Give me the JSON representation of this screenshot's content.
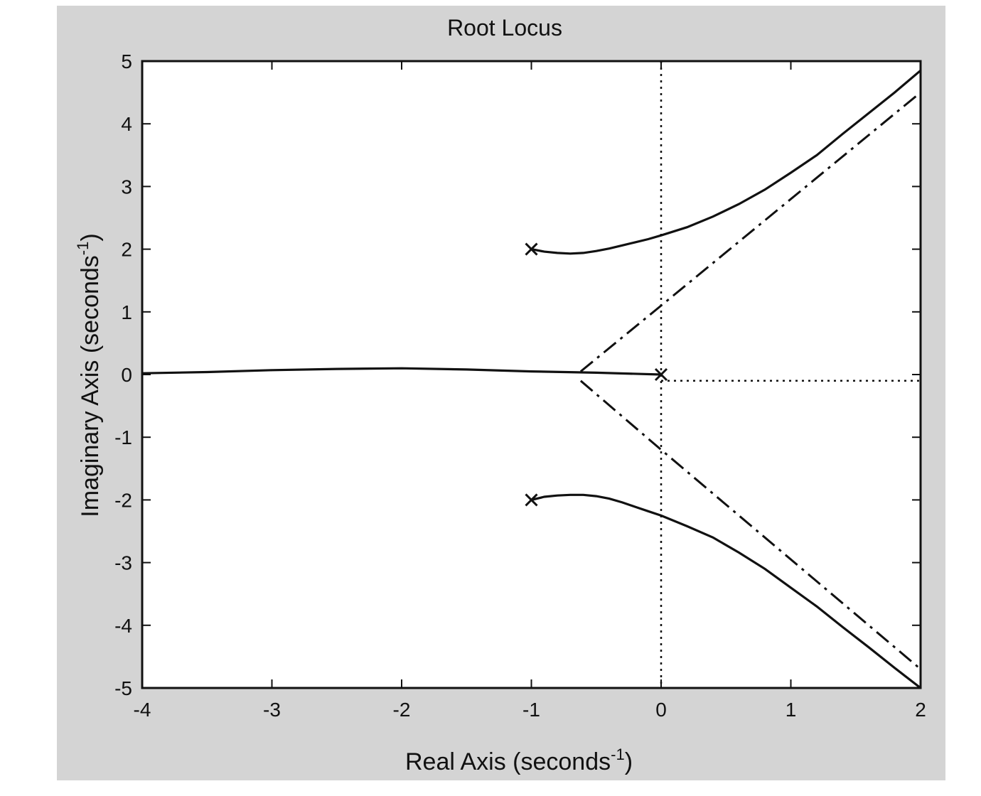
{
  "chart_data": {
    "type": "line",
    "title": "Root Locus",
    "xlabel": "Real Axis (seconds",
    "xlabel_sup": "-1",
    "xlabel_end": ")",
    "ylabel": "Imaginary Axis (seconds",
    "ylabel_sup": "-1",
    "ylabel_end": ")",
    "xlim": [
      -4,
      2
    ],
    "ylim": [
      -5,
      5
    ],
    "xticks": [
      -4,
      -3,
      -2,
      -1,
      0,
      1,
      2
    ],
    "yticks": [
      -5,
      -4,
      -3,
      -2,
      -1,
      0,
      1,
      2,
      3,
      4,
      5
    ],
    "grid": false,
    "poles": [
      {
        "x": -1,
        "y": 2
      },
      {
        "x": -1,
        "y": -2
      },
      {
        "x": 0,
        "y": 0
      }
    ],
    "branches": [
      {
        "style": "solid",
        "points": [
          [
            -1,
            2
          ],
          [
            -0.9,
            1.96
          ],
          [
            -0.8,
            1.94
          ],
          [
            -0.7,
            1.93
          ],
          [
            -0.6,
            1.94
          ],
          [
            -0.5,
            1.97
          ],
          [
            -0.4,
            2.01
          ],
          [
            -0.3,
            2.06
          ],
          [
            -0.2,
            2.11
          ],
          [
            -0.1,
            2.16
          ],
          [
            0,
            2.22
          ],
          [
            0.2,
            2.35
          ],
          [
            0.4,
            2.52
          ],
          [
            0.6,
            2.72
          ],
          [
            0.8,
            2.95
          ],
          [
            1.0,
            3.22
          ],
          [
            1.2,
            3.5
          ],
          [
            1.4,
            3.84
          ],
          [
            1.6,
            4.17
          ],
          [
            1.8,
            4.5
          ],
          [
            2.0,
            4.85
          ]
        ]
      },
      {
        "style": "solid",
        "points": [
          [
            -1,
            -2
          ],
          [
            -0.9,
            -1.95
          ],
          [
            -0.8,
            -1.93
          ],
          [
            -0.7,
            -1.92
          ],
          [
            -0.6,
            -1.92
          ],
          [
            -0.5,
            -1.94
          ],
          [
            -0.4,
            -1.98
          ],
          [
            -0.3,
            -2.04
          ],
          [
            -0.2,
            -2.11
          ],
          [
            -0.1,
            -2.18
          ],
          [
            0,
            -2.25
          ],
          [
            0.2,
            -2.42
          ],
          [
            0.4,
            -2.6
          ],
          [
            0.6,
            -2.84
          ],
          [
            0.8,
            -3.1
          ],
          [
            1.0,
            -3.4
          ],
          [
            1.2,
            -3.7
          ],
          [
            1.4,
            -4.03
          ],
          [
            1.6,
            -4.35
          ],
          [
            1.8,
            -4.68
          ],
          [
            2.0,
            -5.0
          ]
        ]
      },
      {
        "style": "solid",
        "points": [
          [
            0,
            0
          ],
          [
            -0.5,
            0.03
          ],
          [
            -1,
            0.05
          ],
          [
            -1.5,
            0.08
          ],
          [
            -2,
            0.1
          ],
          [
            -2.5,
            0.09
          ],
          [
            -3,
            0.07
          ],
          [
            -3.5,
            0.04
          ],
          [
            -4,
            0.02
          ]
        ]
      },
      {
        "style": "dashdot",
        "points": [
          [
            -0.62,
            0.05
          ],
          [
            0,
            1.1
          ],
          [
            2,
            4.5
          ]
        ]
      },
      {
        "style": "dashdot",
        "points": [
          [
            -0.62,
            -0.1
          ],
          [
            0,
            -1.2
          ],
          [
            2,
            -4.7
          ]
        ]
      },
      {
        "style": "dotted",
        "points": [
          [
            0,
            5
          ],
          [
            0,
            -5
          ]
        ]
      },
      {
        "style": "dotted",
        "points": [
          [
            0,
            -0.1
          ],
          [
            2,
            -0.1
          ]
        ]
      }
    ]
  }
}
